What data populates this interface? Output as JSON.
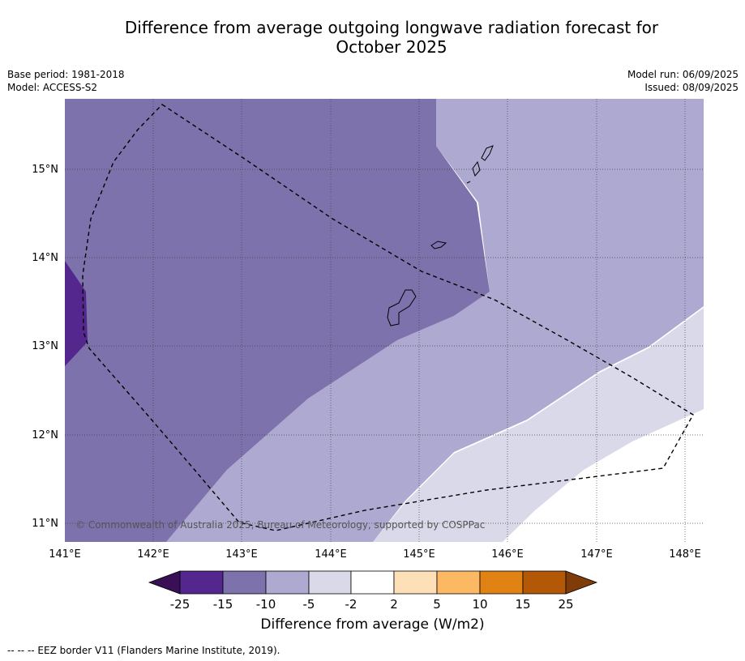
{
  "title_line1": "Difference from average outgoing longwave radiation forecast for",
  "title_line2": "October 2025",
  "base_period": "Base period: 1981-2018",
  "model": "Model: ACCESS-S2",
  "model_run": "Model run: 06/09/2025",
  "issued": "Issued: 08/09/2025",
  "copyright": "© Commonwealth of Australia 2025, Bureau of Meteorology, supported by COSPPac",
  "colorbar": {
    "label": "Difference from average (W/m2)",
    "ticks": [
      "-25",
      "-15",
      "-10",
      "-5",
      "-2",
      "2",
      "5",
      "10",
      "15",
      "25"
    ],
    "colors": {
      "below_-25": "#3b0f55",
      "-25_-15": "#54278f",
      "-15_-10": "#7d72ab",
      "-10_-5": "#aea9d0",
      "-5_-2": "#d9d9ea",
      "-2_2": "#ffffff",
      "2_5": "#fde0b7",
      "5_10": "#fdb863",
      "10_15": "#e08214",
      "15_25": "#b35806",
      "above_25": "#7f3b08"
    }
  },
  "axes": {
    "lon_labels": [
      "141°E",
      "142°E",
      "143°E",
      "144°E",
      "145°E",
      "146°E",
      "147°E",
      "148°E"
    ],
    "lat_labels": [
      "15°N",
      "14°N",
      "13°N",
      "12°N",
      "11°N"
    ]
  },
  "footnote": "--  --  -- EEZ border V11 (Flanders Marine Institute, 2019)."
}
